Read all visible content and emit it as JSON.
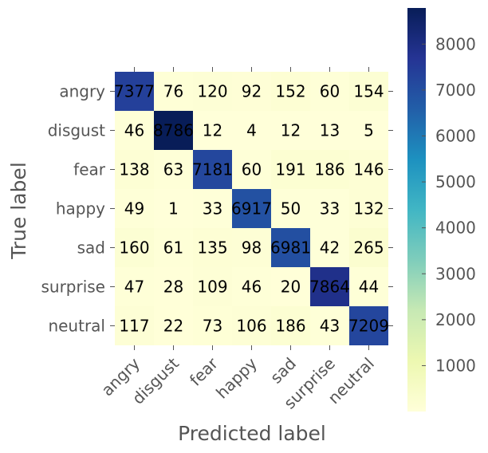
{
  "chart_data": {
    "type": "heatmap",
    "title": "",
    "xlabel": "Predicted label",
    "ylabel": "True label",
    "x_categories": [
      "angry",
      "disgust",
      "fear",
      "happy",
      "sad",
      "surprise",
      "neutral"
    ],
    "y_categories": [
      "angry",
      "disgust",
      "fear",
      "happy",
      "sad",
      "surprise",
      "neutral"
    ],
    "values": [
      [
        7377,
        76,
        120,
        92,
        152,
        60,
        154
      ],
      [
        46,
        8786,
        12,
        4,
        12,
        13,
        5
      ],
      [
        138,
        63,
        7181,
        60,
        191,
        186,
        146
      ],
      [
        49,
        1,
        33,
        6917,
        50,
        33,
        132
      ],
      [
        160,
        61,
        135,
        98,
        6981,
        42,
        265
      ],
      [
        47,
        28,
        109,
        46,
        20,
        7864,
        44
      ],
      [
        117,
        22,
        73,
        106,
        186,
        43,
        7209
      ]
    ],
    "colormap": "YlGnBu",
    "colormap_stops": [
      "#ffffd9",
      "#edf8b1",
      "#c7e9b4",
      "#7fcdbb",
      "#41b6c4",
      "#1d91c0",
      "#225ea8",
      "#253494",
      "#081d58"
    ],
    "color_range": [
      1,
      8786
    ],
    "colorbar_ticks": [
      1000,
      2000,
      3000,
      4000,
      5000,
      6000,
      7000,
      8000
    ],
    "colorbar_tick_labels": [
      "1000",
      "2000",
      "3000",
      "4000",
      "5000",
      "6000",
      "7000",
      "8000"
    ]
  }
}
